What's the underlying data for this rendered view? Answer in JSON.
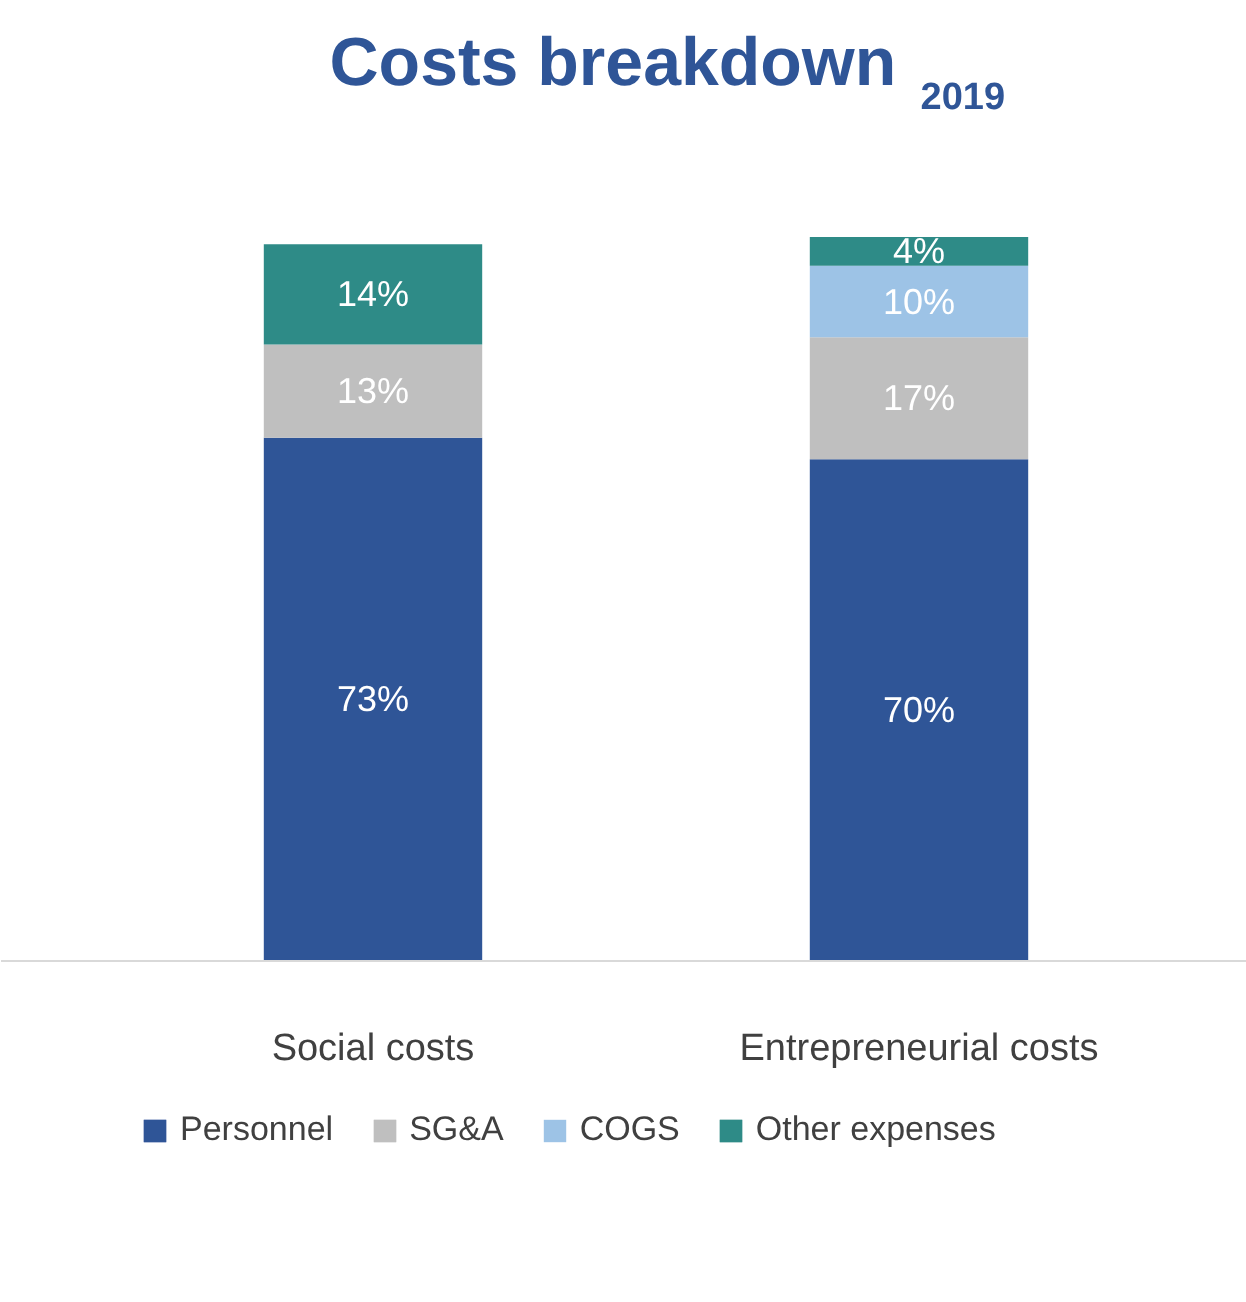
{
  "chart_data": {
    "type": "bar",
    "title": "Costs breakdown $_{2019}$",
    "stacked": true,
    "legend": "bottom",
    "grid": false,
    "categories": [
      "Social costs",
      "Entrepreneurial costs"
    ],
    "series": [
      {
        "name": "Personnel",
        "color": "#2f5597",
        "values": [
          73,
          70
        ],
        "value_labels": [
          "73%",
          "70%"
        ]
      },
      {
        "name": "SG&A",
        "color": "#bfbfbf",
        "values": [
          13,
          17
        ],
        "value_labels": [
          "13%",
          "17%"
        ]
      },
      {
        "name": "COGS",
        "color": "#9dc3e6",
        "values": [
          null,
          10
        ],
        "value_labels": [
          null,
          "10%"
        ]
      },
      {
        "name": "Other expenses",
        "color": "#2e8b87",
        "values": [
          14,
          4
        ],
        "value_labels": [
          "14%",
          "4%"
        ]
      }
    ]
  }
}
